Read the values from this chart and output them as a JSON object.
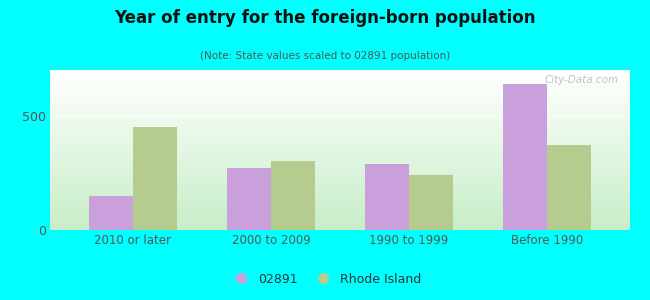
{
  "title": "Year of entry for the foreign-born population",
  "subtitle": "(Note: State values scaled to 02891 population)",
  "categories": [
    "2010 or later",
    "2000 to 2009",
    "1990 to 1999",
    "Before 1990"
  ],
  "series_02891": [
    150,
    270,
    290,
    640
  ],
  "series_ri": [
    450,
    300,
    240,
    370
  ],
  "color_02891": "#c9a0dc",
  "color_ri": "#b5cc8e",
  "legend_02891": "02891",
  "legend_ri": "Rhode Island",
  "ylim": [
    0,
    700
  ],
  "yticks": [
    0,
    500
  ],
  "background_color": "#00ffff",
  "bar_width": 0.32,
  "watermark": "City-Data.com"
}
